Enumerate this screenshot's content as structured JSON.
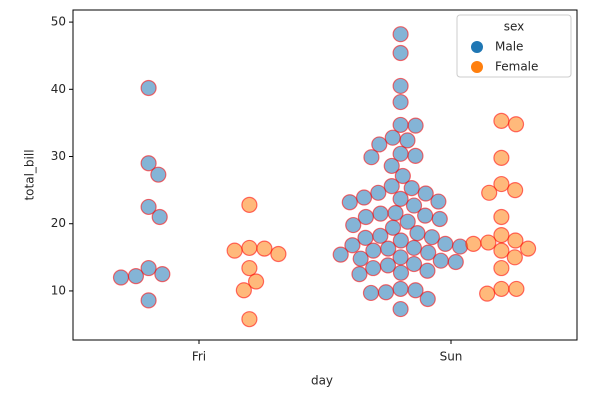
{
  "chart_data": {
    "type": "swarm",
    "x_label": "day",
    "y_label": "total_bill",
    "categories": [
      "Fri",
      "Sun"
    ],
    "ylim": [
      2.7,
      51.8
    ],
    "yticks": [
      10,
      20,
      30,
      40,
      50
    ],
    "legend_title": "sex",
    "legend": "upper right",
    "alpha": 0.55,
    "edgecolor": "#ff0000",
    "series": [
      {
        "name": "Male",
        "color": "#1f77b4",
        "values": [
          [
            40.2,
            29.0,
            27.3,
            22.5,
            21.0,
            13.4,
            12.2,
            12.0,
            12.5,
            8.6
          ],
          [
            48.2,
            45.4,
            40.5,
            38.1,
            34.6,
            34.7,
            32.4,
            32.8,
            31.8,
            30.4,
            30.1,
            29.9,
            28.6,
            27.1,
            25.6,
            25.3,
            24.6,
            24.5,
            23.9,
            23.7,
            23.3,
            23.2,
            22.7,
            21.6,
            21.5,
            21.2,
            21.0,
            20.7,
            20.3,
            19.8,
            19.4,
            18.6,
            18.2,
            18.0,
            17.9,
            17.5,
            17.0,
            16.8,
            16.6,
            16.4,
            16.3,
            16.0,
            15.7,
            15.4,
            15.0,
            14.8,
            14.5,
            14.3,
            14.0,
            13.8,
            13.4,
            13.0,
            12.7,
            12.5,
            10.3,
            10.1,
            9.7,
            9.8,
            8.8,
            7.3
          ]
        ]
      },
      {
        "name": "Female",
        "color": "#ff7f0e",
        "values": [
          [
            22.8,
            16.4,
            16.3,
            16.0,
            15.5,
            13.4,
            11.4,
            10.1,
            5.8
          ],
          [
            35.3,
            34.8,
            29.8,
            25.9,
            25.0,
            24.6,
            21.0,
            18.3,
            17.5,
            17.2,
            17.0,
            16.3,
            16.0,
            15.0,
            13.4,
            10.3,
            10.3,
            9.6
          ]
        ]
      }
    ]
  }
}
